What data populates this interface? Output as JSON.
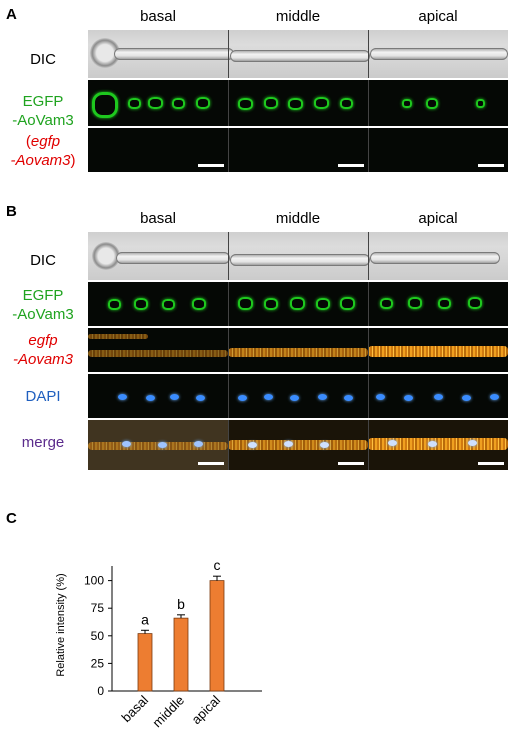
{
  "panelA": {
    "letter": "A",
    "columns": [
      "basal",
      "middle",
      "apical"
    ],
    "rows": {
      "dic": "DIC",
      "egfp_line1": "EGFP",
      "egfp_line2": "-AoVam3",
      "mrna_open": "(",
      "mrna_line1": "egfp",
      "mrna_line2": "-Aovam3",
      "mrna_close": ")"
    }
  },
  "panelB": {
    "letter": "B",
    "columns": [
      "basal",
      "middle",
      "apical"
    ],
    "rows": {
      "dic": "DIC",
      "egfp_line1": "EGFP",
      "egfp_line2": "-AoVam3",
      "mrna_line1": "egfp",
      "mrna_line2": "-Aovam3",
      "dapi": "DAPI",
      "merge": "merge"
    }
  },
  "panelC": {
    "letter": "C",
    "chart_data": {
      "type": "bar",
      "categories": [
        "basal",
        "middle",
        "apical"
      ],
      "values": [
        52,
        66,
        100
      ],
      "errors": [
        3,
        3,
        4
      ],
      "significance": [
        "a",
        "b",
        "c"
      ],
      "ylabel": "Relative intensity (%)",
      "yticks": [
        "0",
        "25",
        "50",
        "75",
        "100"
      ],
      "ylim": [
        0,
        125
      ],
      "bar_color": "#ed7d31"
    }
  },
  "colors": {
    "egfp_label": "#1fa31f",
    "mrna_label": "#e00000",
    "dapi_label": "#1f5fbf",
    "merge_label": "#5b2b8c"
  }
}
